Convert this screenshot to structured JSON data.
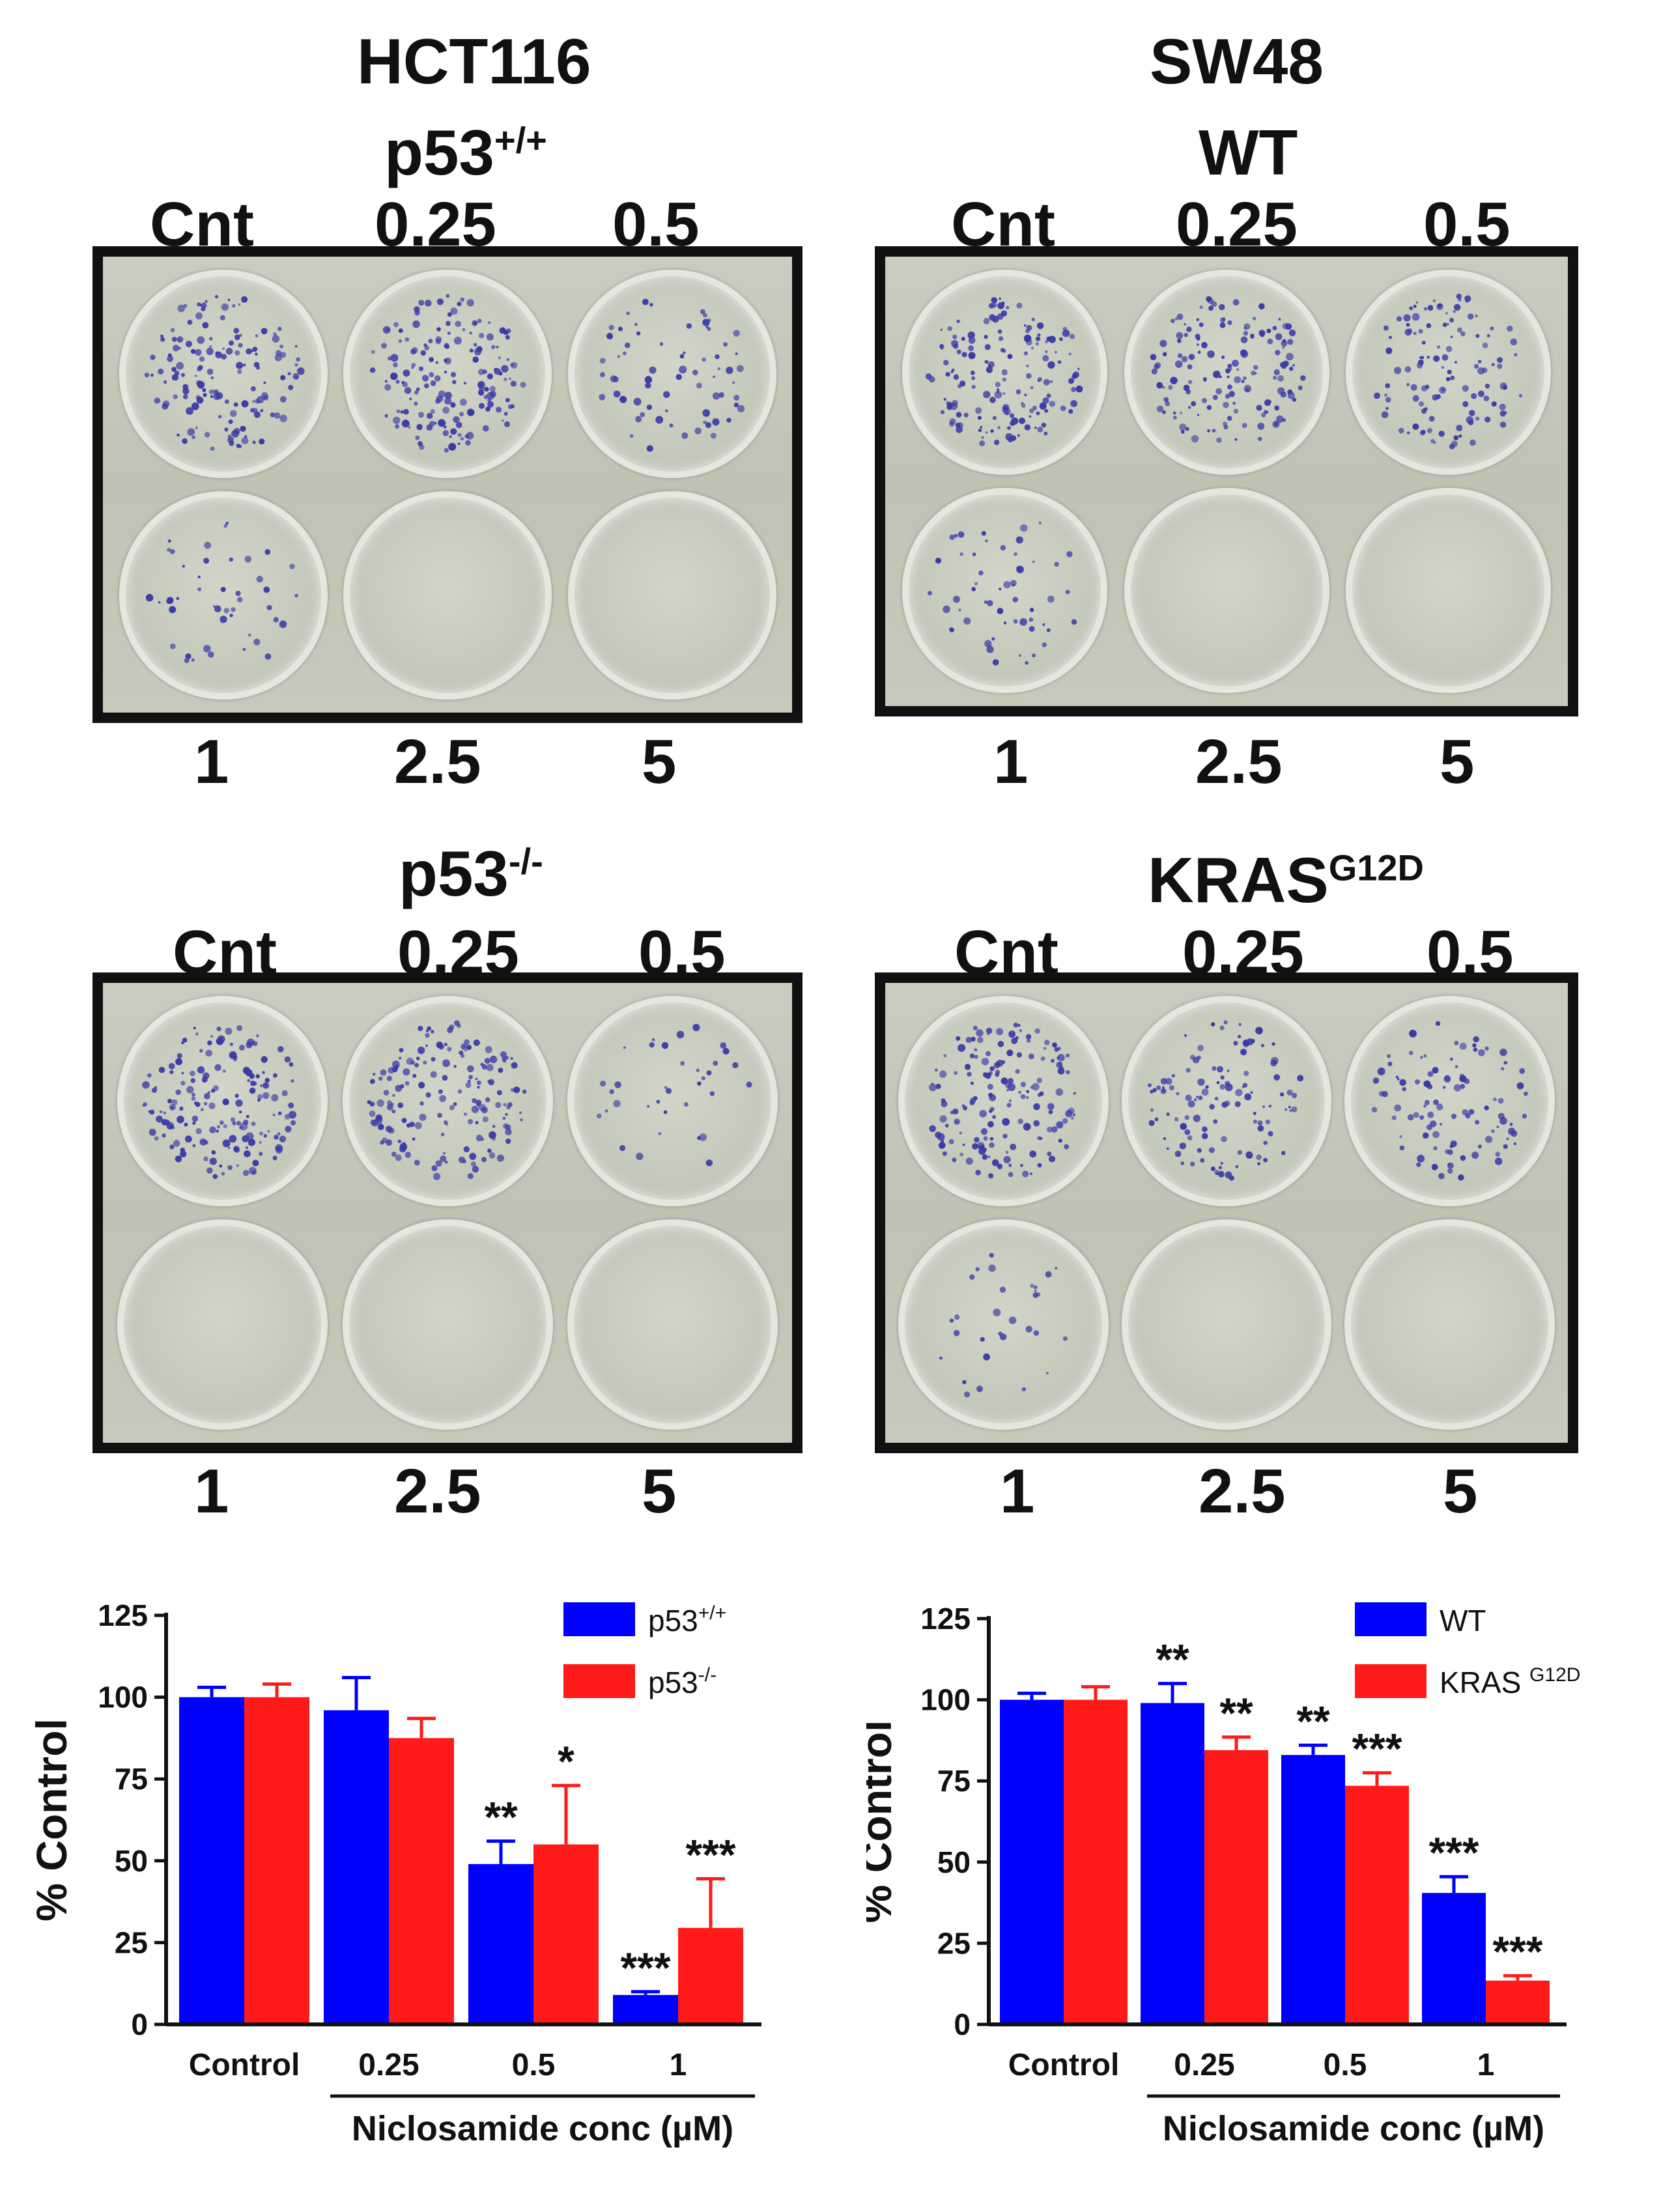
{
  "panels": {
    "hct116": {
      "title": "HCT116",
      "top_group": {
        "base": "p53",
        "sup": "+/+"
      },
      "bottom_group": {
        "base": "p53",
        "sup": "-/-"
      }
    },
    "sw48": {
      "title": "SW48",
      "top_group": {
        "base": "WT",
        "sup": ""
      },
      "bottom_group": {
        "base": "KRAS",
        "sup": "G12D"
      }
    }
  },
  "plate_labels": {
    "top": [
      "Cnt",
      "0.25",
      "0.5"
    ],
    "bottom": [
      "1",
      "2.5",
      "5"
    ]
  },
  "colony_density": {
    "hct_wt": [
      150,
      170,
      70,
      45,
      0,
      0
    ],
    "hct_ko": [
      170,
      170,
      35,
      0,
      0,
      0
    ],
    "sw_wt": [
      160,
      150,
      120,
      55,
      0,
      0
    ],
    "sw_kras": [
      170,
      120,
      100,
      30,
      0,
      0
    ]
  },
  "colors": {
    "blue": "#0000ff",
    "red": "#ff1a1a",
    "stain": "#3a3aa8"
  },
  "chart_data": [
    {
      "type": "bar",
      "categories": [
        "Control",
        "0.25",
        "0.5",
        "1"
      ],
      "xlabel": "Niclosamide conc (µM)",
      "ylabel": "% Control",
      "ylim": [
        0,
        125
      ],
      "yticks": [
        "0",
        "25",
        "50",
        "75",
        "100",
        "125"
      ],
      "legend_placement": "top-right",
      "series": [
        {
          "name": "p53",
          "name_sup": "+/+",
          "color": "#0000ff",
          "values": [
            100,
            96,
            49,
            9
          ],
          "errors": [
            3,
            10,
            7,
            1
          ],
          "sig": [
            "",
            "",
            "**",
            "***"
          ]
        },
        {
          "name": "p53",
          "name_sup": "-/-",
          "color": "#ff1a1a",
          "values": [
            100,
            87.5,
            55,
            29.5
          ],
          "errors": [
            4,
            6,
            18,
            15
          ],
          "sig": [
            "",
            "",
            "*",
            "***"
          ]
        }
      ]
    },
    {
      "type": "bar",
      "categories": [
        "Control",
        "0.25",
        "0.5",
        "1"
      ],
      "xlabel": "Niclosamide conc (µM)",
      "ylabel": "% Control",
      "ylim": [
        0,
        125
      ],
      "yticks": [
        "0",
        "25",
        "50",
        "75",
        "100",
        "125"
      ],
      "legend_placement": "top-right",
      "series": [
        {
          "name": "WT",
          "name_sup": "",
          "color": "#0000ff",
          "values": [
            100,
            99,
            83,
            40.5
          ],
          "errors": [
            2,
            6,
            3,
            5
          ],
          "sig": [
            "",
            "**",
            "**",
            "***"
          ]
        },
        {
          "name": "KRAS ",
          "name_sup": "G12D",
          "color": "#ff1a1a",
          "values": [
            100,
            84.5,
            73.5,
            13.5
          ],
          "errors": [
            4,
            4,
            4,
            1.5
          ],
          "sig": [
            "",
            "**",
            "***",
            "***"
          ]
        }
      ]
    }
  ]
}
